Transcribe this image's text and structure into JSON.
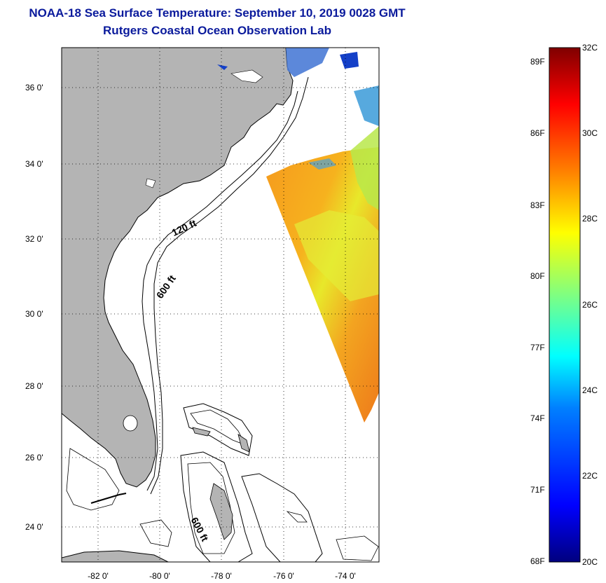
{
  "title": "NOAA-18 Sea Surface Temperature:  September 10, 2019 0028 GMT",
  "subtitle": "Rutgers Coastal Ocean Observation Lab",
  "lat_labels": [
    "36 0'",
    "34 0'",
    "32 0'",
    "30 0'",
    "28 0'",
    "26 0'",
    "24 0'"
  ],
  "lon_labels": [
    "-82 0'",
    "-80 0'",
    "-78 0'",
    "-76 0'",
    "-74 0'"
  ],
  "isobath_labels": {
    "shallow": "120 ft",
    "deep": "600 ft",
    "bahamas": "600 ft"
  },
  "colorbar": {
    "fahrenheit": [
      "89F",
      "86F",
      "83F",
      "80F",
      "77F",
      "74F",
      "71F",
      "68F"
    ],
    "celsius": [
      "32C",
      "30C",
      "28C",
      "26C",
      "24C",
      "22C",
      "20C"
    ],
    "range_c": [
      20,
      32
    ],
    "colors": [
      "#00007f",
      "#0000ff",
      "#0080ff",
      "#00ffff",
      "#80ff80",
      "#ffff00",
      "#ff8000",
      "#ff0000",
      "#7f0000"
    ]
  },
  "colors": {
    "land": "#b4b4b4",
    "ocean": "#ffffff",
    "title": "#0a1a9c"
  }
}
